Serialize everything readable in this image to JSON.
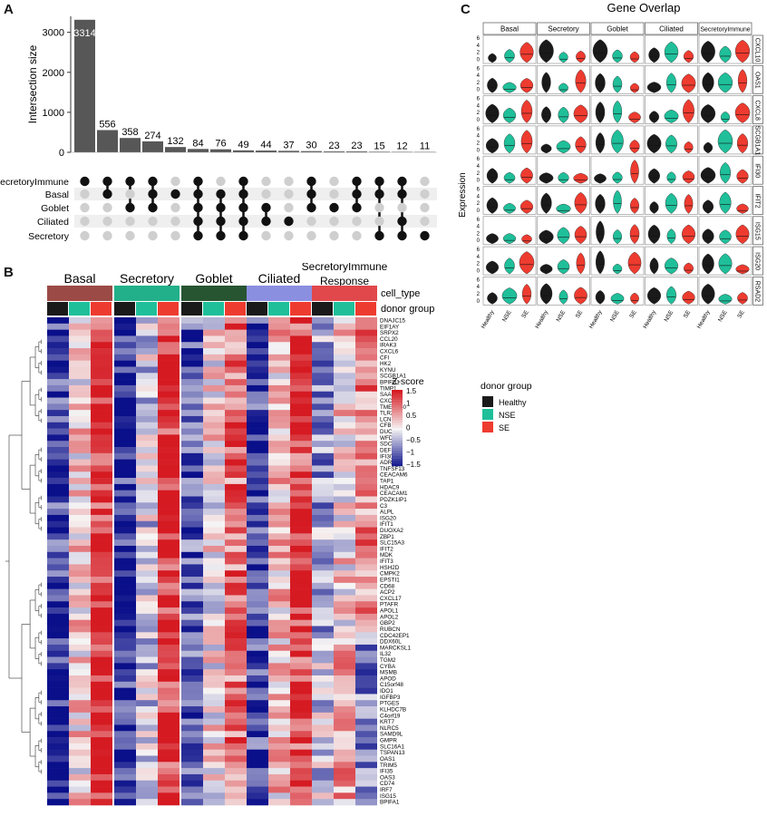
{
  "panels": {
    "a": "A",
    "b": "B",
    "c": "C"
  },
  "colors": {
    "bar": "#575757",
    "dot_on": "#111111",
    "dot_off": "#cfcfcf",
    "healthy": "#1a1a1a",
    "nse": "#1fbf9a",
    "se": "#ee3b2f",
    "basal": "#9b4a45",
    "secretory": "#21b089",
    "goblet": "#275531",
    "ciliated": "#8b8fe0",
    "secretoryimmune": "#e0484b",
    "heat_low": "#0a0f8a",
    "heat_mid": "#f6f4f4",
    "heat_high": "#d51a22"
  },
  "chart_data": [
    {
      "type": "bar",
      "panel": "upset",
      "ylabel": "Intersection size",
      "yticks": [
        0,
        1000,
        2000,
        3000
      ],
      "ylim": [
        0,
        3400
      ],
      "values": [
        3314,
        556,
        358,
        274,
        132,
        84,
        76,
        49,
        44,
        37,
        30,
        23,
        23,
        15,
        12,
        11
      ],
      "value_labels": [
        "3314",
        "556",
        "358",
        "274",
        "132",
        "84",
        "76",
        "49",
        "44",
        "37",
        "30",
        "23",
        "23",
        "15",
        "12",
        "11"
      ],
      "sets": [
        "SecretoryImmune",
        "Basal",
        "Goblet",
        "Ciliated",
        "Secretory"
      ],
      "membership": [
        [
          1,
          0,
          0,
          0,
          0
        ],
        [
          1,
          1,
          0,
          0,
          0
        ],
        [
          1,
          0,
          1,
          0,
          0
        ],
        [
          1,
          1,
          1,
          0,
          0
        ],
        [
          0,
          1,
          0,
          0,
          0
        ],
        [
          1,
          1,
          1,
          1,
          1
        ],
        [
          0,
          1,
          1,
          1,
          1
        ],
        [
          1,
          1,
          1,
          1,
          1
        ],
        [
          0,
          0,
          1,
          1,
          0
        ],
        [
          0,
          0,
          0,
          1,
          0
        ],
        [
          1,
          1,
          1,
          0,
          0
        ],
        [
          0,
          0,
          1,
          0,
          0
        ],
        [
          1,
          1,
          1,
          0,
          0
        ],
        [
          1,
          1,
          0,
          0,
          1
        ],
        [
          1,
          1,
          0,
          1,
          1
        ],
        [
          0,
          0,
          0,
          0,
          1
        ]
      ]
    },
    {
      "type": "heatmap",
      "panel": "heatmap",
      "legend_title": "Z-score",
      "legend_ticks": [
        "1.5",
        "1",
        "0.5",
        "0",
        "−0.5",
        "−1",
        "−1.5"
      ],
      "annotation_labels": [
        "cell_type",
        "donor group"
      ],
      "columns": [
        {
          "label": "Basal",
          "color_key": "basal"
        },
        {
          "label": "Secretory",
          "color_key": "secretory"
        },
        {
          "label": "Goblet",
          "color_key": "goblet"
        },
        {
          "label": "Ciliated",
          "color_key": "ciliated"
        },
        {
          "label": "SecretoryImmune\nResponse",
          "color_key": "secretoryimmune"
        }
      ],
      "donor_groups": [
        "Healthy",
        "NSE",
        "SE"
      ],
      "genes": [
        "DNAJC15",
        "EIF1AY",
        "SRPX2",
        "CCL20",
        "IRAK3",
        "CXCL6",
        "CFI",
        "HK2",
        "KYNU",
        "SCGB1A1",
        "BPIFB1",
        "TIMP1",
        "SAA4",
        "CXCL8",
        "TMEM140",
        "TLR2",
        "LCN2",
        "CFB",
        "DUOX2",
        "WFDC2",
        "SDCBP2",
        "DEFB1",
        "IFI30",
        "ADRB2",
        "TNFSF13",
        "CEACAM6",
        "TAP1",
        "HDAC9",
        "CEACAM1",
        "PDZK1IP1",
        "C3",
        "ALPL",
        "ISG20",
        "IFIT1",
        "DUOXA2",
        "ZBP1",
        "SLC15A3",
        "IFIT2",
        "MDK",
        "IFIT3",
        "HSH2D",
        "CMPK2",
        "EPSTI1",
        "CD68",
        "ACP2",
        "CXCL17",
        "PTAFR",
        "APOL1",
        "APOL2",
        "GBP2",
        "RUBCN",
        "CDC42EP1",
        "DDX60L",
        "MARCKSL1",
        "IL32",
        "TGM2",
        "CYBA",
        "MSMB",
        "APOD",
        "C15orf48",
        "IDO1",
        "IGFBP3",
        "PTGES",
        "KLHDC7B",
        "C4orf19",
        "KRT7",
        "NLRC5",
        "SAMD9L",
        "GMPR",
        "SLC16A1",
        "TSPAN13",
        "OAS1",
        "TRIM5",
        "IFI35",
        "OAS3",
        "CD74",
        "IRF7",
        "ISG15",
        "BPIFA1"
      ]
    },
    {
      "type": "violin",
      "panel": "violin",
      "title": "Gene Overlap",
      "ylabel": "Expression",
      "facet_columns": [
        "Basal",
        "Secretory",
        "Goblet",
        "Ciliated",
        "SecretoryImmune"
      ],
      "facet_rows": [
        "CXCL10",
        "OAS1",
        "CXCL8",
        "SCGB1A1",
        "IFI30",
        "IFIT2",
        "ISG15",
        "ISG20",
        "RSAD2"
      ],
      "x": [
        "Healthy",
        "NSE",
        "SE"
      ],
      "yticks": [
        "6",
        "4",
        "2",
        "0"
      ],
      "legend_title": "donor group",
      "legend": [
        "Healthy",
        "NSE",
        "SE"
      ]
    }
  ]
}
